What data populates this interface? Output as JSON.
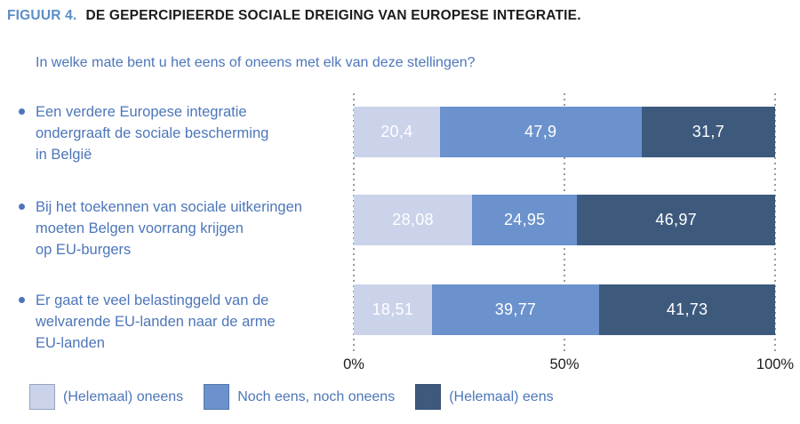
{
  "figure": {
    "label": "FIGUUR 4.",
    "title": "DE GEPERCIPIEERDE SOCIALE DREIGING VAN EUROPESE INTEGRATIE.",
    "question": "In welke mate bent u het eens of oneens met elk van deze stellingen?"
  },
  "colors": {
    "oneens": "#cbd3eb",
    "noch_eens_noch_oneens": "#6b92cc",
    "eens": "#3d5a7d",
    "statement_text": "#4d76b9",
    "figure_label": "#5a8ec8",
    "axis_text": "#1c1c1c",
    "gridline": "#9b9b9b"
  },
  "chart_data": {
    "type": "bar",
    "orientation": "horizontal",
    "stacked": true,
    "unit": "%",
    "categories": [
      "Een verdere Europese integratie\nondergraaft de sociale bescherming\nin België",
      "Bij het toekennen van sociale uitkeringen\nmoeten Belgen voorrang krijgen\nop EU-burgers",
      "Er gaat te veel belastinggeld van de\nwelvarende EU-landen naar de arme\nEU-landen"
    ],
    "series": [
      {
        "name": "(Helemaal) oneens",
        "color": "#cbd3eb",
        "values": [
          20.4,
          28.08,
          18.51
        ]
      },
      {
        "name": "Noch eens, noch oneens",
        "color": "#6b92cc",
        "values": [
          47.9,
          24.95,
          39.77
        ]
      },
      {
        "name": "(Helemaal) eens",
        "color": "#3d5a7d",
        "values": [
          31.7,
          46.97,
          41.73
        ]
      }
    ],
    "value_labels": [
      [
        "20,4",
        "47,9",
        "31,7"
      ],
      [
        "28,08",
        "24,95",
        "46,97"
      ],
      [
        "18,51",
        "39,77",
        "41,73"
      ]
    ],
    "x_ticks": [
      "0%",
      "50%",
      "100%"
    ],
    "xlim": [
      0,
      100
    ],
    "grid": "dotted-vertical",
    "legend_position": "bottom"
  },
  "legend": {
    "items": [
      {
        "label": "(Helemaal) oneens",
        "color": "#cbd3eb"
      },
      {
        "label": "Noch eens, noch oneens",
        "color": "#6b92cc"
      },
      {
        "label": "(Helemaal) eens",
        "color": "#3d5a7d"
      }
    ]
  }
}
